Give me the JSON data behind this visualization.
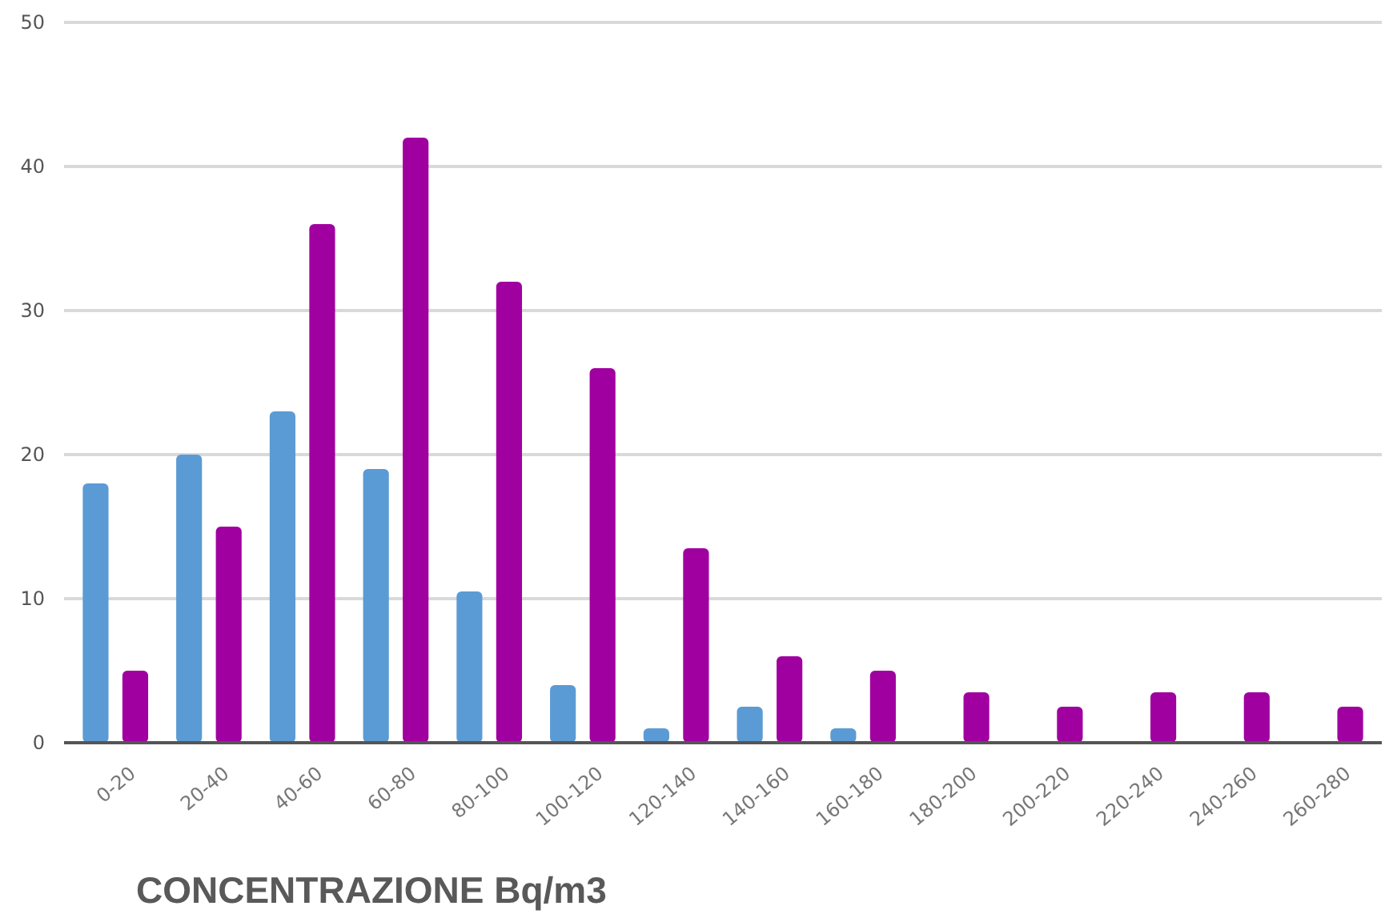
{
  "chart_data": {
    "type": "bar",
    "xlabel": "CONCENTRAZIONE Bq/m3",
    "categories": [
      "0-20",
      "20-40",
      "40-60",
      "60-80",
      "80-100",
      "100-120",
      "120-140",
      "140-160",
      "160-180",
      "180-200",
      "200-220",
      "220-240",
      "240-260",
      "260-280"
    ],
    "series": [
      {
        "color": "#5b9bd5",
        "values": [
          18,
          20,
          23,
          19,
          10.5,
          4,
          1,
          2.5,
          1,
          0,
          0,
          0,
          0,
          0
        ]
      },
      {
        "color": "#a000a0",
        "values": [
          5,
          15,
          36,
          42,
          32,
          26,
          13.5,
          6,
          5,
          3.5,
          2.5,
          3.5,
          3.5,
          2.5
        ]
      }
    ],
    "ylim": [
      0,
      50
    ],
    "yticks": [
      0,
      10,
      20,
      30,
      40,
      50
    ],
    "grid": "y"
  }
}
